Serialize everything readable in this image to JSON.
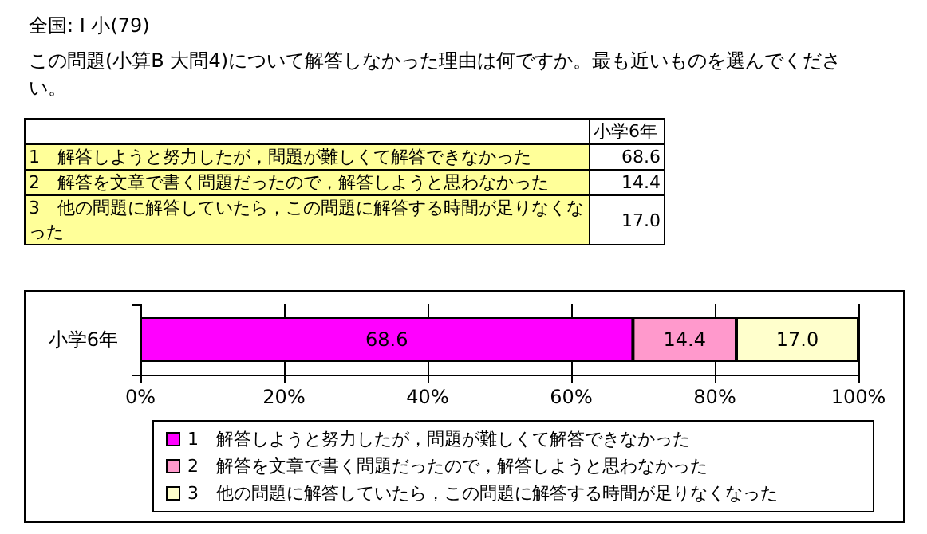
{
  "chart_data": {
    "type": "bar",
    "orientation": "horizontal",
    "stacked": true,
    "title": "全国: Ⅰ 小(79)",
    "subtitle": "この問題(小算B 大問4)について解答しなかった理由は何ですか。最も近いものを選んでください。",
    "categories": [
      "小学6年"
    ],
    "series": [
      {
        "name": "1　解答しようと努力したが，問題が難しくて解答できなかった",
        "color": "#ff00ff",
        "values": [
          68.6
        ],
        "value_labels": [
          "68.6"
        ]
      },
      {
        "name": "2　解答を文章で書く問題だったので，解答しようと思わなかった",
        "color": "#ff99cc",
        "values": [
          14.4
        ],
        "value_labels": [
          "14.4"
        ]
      },
      {
        "name": "3　他の問題に解答していたら，この問題に解答する時間が足りなくなった",
        "color": "#ffffcc",
        "values": [
          17.0
        ],
        "value_labels": [
          "17.0"
        ]
      }
    ],
    "xlim": [
      0,
      100
    ],
    "xticks": [
      {
        "value": 0,
        "label": "0%"
      },
      {
        "value": 20,
        "label": "20%"
      },
      {
        "value": 40,
        "label": "40%"
      },
      {
        "value": 60,
        "label": "60%"
      },
      {
        "value": 80,
        "label": "80%"
      },
      {
        "value": 100,
        "label": "100%"
      }
    ],
    "grid": "x",
    "legend": "bottom"
  }
}
